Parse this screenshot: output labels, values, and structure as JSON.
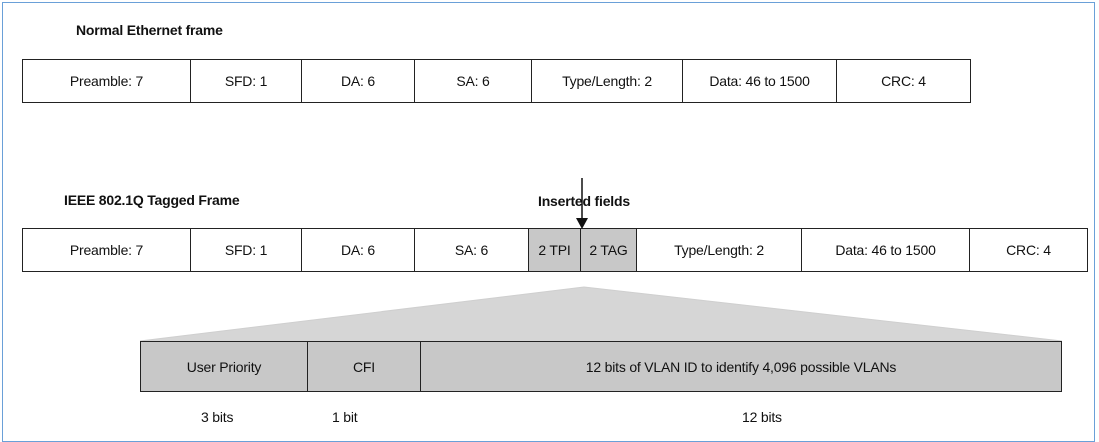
{
  "normal_frame": {
    "title": "Normal Ethernet frame",
    "fields": [
      "Preamble: 7",
      "SFD: 1",
      "DA: 6",
      "SA: 6",
      "Type/Length: 2",
      "Data: 46 to 1500",
      "CRC: 4"
    ]
  },
  "tagged_frame": {
    "title": "IEEE 802.1Q Tagged Frame",
    "inserted_label": "Inserted fields",
    "fields": [
      "Preamble: 7",
      "SFD: 1",
      "DA: 6",
      "SA: 6",
      "2 TPI",
      "2 TAG",
      "Type/Length: 2",
      "Data: 46 to 1500",
      "CRC: 4"
    ],
    "shaded_fields": [
      "2 TPI",
      "2 TAG"
    ]
  },
  "tag_detail": {
    "fields": [
      "User Priority",
      "CFI",
      "12 bits of VLAN ID to identify 4,096 possible VLANs"
    ],
    "bit_sizes": [
      "3 bits",
      "1 bit",
      "12 bits"
    ]
  },
  "colors": {
    "shaded": "#c8c8c8",
    "border": "#6aa0d8"
  }
}
